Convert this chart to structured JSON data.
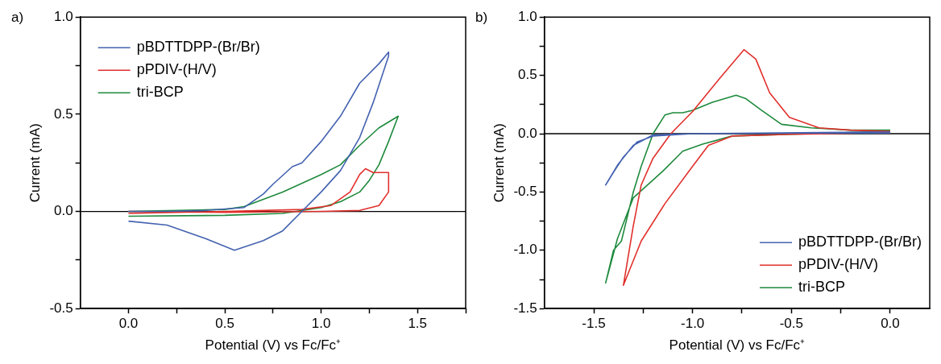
{
  "chart_data": [
    {
      "type": "line",
      "annotations": [
        "a)"
      ],
      "xlabel": "Potential (V) vs Fc/Fc⁺",
      "ylabel": "Current (mA)",
      "xlim": [
        -0.25,
        1.75
      ],
      "ylim": [
        -0.5,
        1.0
      ],
      "xticks": [
        {
          "value": 0,
          "label": "0.0"
        },
        {
          "value": 0.25,
          "label": null
        },
        0.5,
        {
          "value": 0.75,
          "label": null
        },
        {
          "value": 1,
          "label": "1.0"
        },
        {
          "value": 1.25,
          "label": null
        },
        1.5,
        {
          "value": 1.75,
          "label": null
        }
      ],
      "yticks": [
        -0.5,
        {
          "value": -0.25,
          "label": null
        },
        {
          "value": 0,
          "label": "0.0"
        },
        {
          "value": 0.25,
          "label": null
        },
        0.5,
        {
          "value": 0.75,
          "label": null
        },
        {
          "value": 1,
          "label": "1.0"
        }
      ],
      "grid": false,
      "legend": "top left",
      "marker": "none",
      "line_style": "solid",
      "ref_lines": [
        {
          "axis": "y",
          "value": 0,
          "label": null,
          "color": "#000000"
        }
      ],
      "series": [
        {
          "name": "pBDTTDPP-(Br/Br)",
          "color": "#4462b0",
          "x": [
            0,
            0.2,
            0.4,
            0.55,
            0.7,
            0.8,
            0.9,
            1.0,
            1.1,
            1.2,
            1.27,
            1.35,
            1.35,
            1.3,
            1.2,
            1.1,
            1.0,
            0.9,
            0.85,
            0.75,
            0.7,
            0.6,
            0.4,
            0.2,
            0
          ],
          "values": [
            -0.05,
            -0.07,
            -0.14,
            -0.2,
            -0.15,
            -0.1,
            0.0,
            0.1,
            0.21,
            0.38,
            0.56,
            0.8,
            0.82,
            0.76,
            0.66,
            0.49,
            0.36,
            0.25,
            0.23,
            0.14,
            0.09,
            0.02,
            0.005,
            0.0,
            0.0
          ]
        },
        {
          "name": "pPDIV-(H/V)",
          "color": "#e0302c",
          "x": [
            0,
            0.5,
            0.9,
            1.05,
            1.15,
            1.2,
            1.23,
            1.27,
            1.35,
            1.35,
            1.3,
            1.2,
            1.0,
            0.5,
            0
          ],
          "values": [
            -0.01,
            0.0,
            0.01,
            0.03,
            0.1,
            0.19,
            0.22,
            0.2,
            0.2,
            0.1,
            0.03,
            0.005,
            0.0,
            -0.005,
            0.0
          ]
        },
        {
          "name": "tri-BCP",
          "color": "#1e8a3c",
          "x": [
            0,
            0.5,
            0.6,
            0.8,
            1.0,
            1.1,
            1.2,
            1.3,
            1.4,
            1.35,
            1.3,
            1.25,
            1.2,
            1.1,
            1.0,
            0.8,
            0.5,
            0
          ],
          "values": [
            0.0,
            0.01,
            0.025,
            0.1,
            0.19,
            0.24,
            0.34,
            0.43,
            0.49,
            0.36,
            0.24,
            0.16,
            0.1,
            0.05,
            0.02,
            -0.01,
            -0.02,
            -0.025
          ]
        }
      ]
    },
    {
      "type": "line",
      "annotations": [
        "b)"
      ],
      "xlabel": "Potential (V) vs Fc/Fc⁺",
      "ylabel": "Current (mA)",
      "xlim": [
        -1.75,
        0.2
      ],
      "ylim": [
        -1.5,
        1.0
      ],
      "xticks": [
        -1.5,
        {
          "value": -1.25,
          "label": null
        },
        {
          "value": -1,
          "label": "-1.0"
        },
        {
          "value": -0.75,
          "label": null
        },
        -0.5,
        {
          "value": -0.25,
          "label": null
        },
        {
          "value": 0,
          "label": "0.0"
        }
      ],
      "yticks": [
        -1.5,
        {
          "value": -1.25,
          "label": null
        },
        {
          "value": -1,
          "label": "-1.0"
        },
        {
          "value": -0.75,
          "label": null
        },
        -0.5,
        {
          "value": -0.25,
          "label": null
        },
        {
          "value": 0,
          "label": "0.0"
        },
        {
          "value": 0.25,
          "label": null
        },
        0.5,
        {
          "value": 0.75,
          "label": null
        },
        {
          "value": 1,
          "label": "1.0"
        }
      ],
      "grid": false,
      "legend": "bottom right",
      "marker": "none",
      "line_style": "solid",
      "ref_lines": [
        {
          "axis": "y",
          "value": 0,
          "label": null,
          "color": "#000000"
        }
      ],
      "series": [
        {
          "name": "pBDTTDPP-(Br/Br)",
          "color": "#4462b0",
          "x": [
            0,
            -0.5,
            -1.0,
            -1.2,
            -1.3,
            -1.38,
            -1.44,
            -1.4,
            -1.35,
            -1.28,
            -1.2,
            -1.0,
            0
          ],
          "values": [
            0.005,
            0.005,
            0.0,
            -0.01,
            -0.1,
            -0.27,
            -0.44,
            -0.33,
            -0.2,
            -0.07,
            -0.02,
            0.0,
            0.015
          ]
        },
        {
          "name": "pPDIV-(H/V)",
          "color": "#e0302c",
          "x": [
            0,
            -0.5,
            -0.8,
            -0.92,
            -1.0,
            -1.14,
            -1.26,
            -1.35,
            -1.3,
            -1.26,
            -1.2,
            -1.11,
            -1.0,
            -0.86,
            -0.74,
            -0.68,
            -0.61,
            -0.51,
            -0.36,
            -0.2,
            0
          ],
          "values": [
            0.01,
            -0.005,
            -0.02,
            -0.1,
            -0.28,
            -0.6,
            -0.92,
            -1.3,
            -0.79,
            -0.44,
            -0.21,
            0.0,
            0.19,
            0.48,
            0.72,
            0.64,
            0.35,
            0.14,
            0.05,
            0.03,
            0.02
          ]
        },
        {
          "name": "tri-BCP",
          "color": "#1e8a3c",
          "x": [
            0,
            -0.5,
            -0.8,
            -0.95,
            -1.05,
            -1.15,
            -1.3,
            -1.38,
            -1.44,
            -1.4,
            -1.36,
            -1.3,
            -1.26,
            -1.2,
            -1.14,
            -1.1,
            -1.05,
            -1.0,
            -0.9,
            -0.78,
            -0.73,
            -0.65,
            -0.55,
            -0.4,
            -0.2,
            0
          ],
          "values": [
            0.02,
            -0.005,
            -0.02,
            -0.09,
            -0.15,
            -0.32,
            -0.55,
            -0.9,
            -1.28,
            -1.0,
            -0.92,
            -0.5,
            -0.28,
            0.0,
            0.16,
            0.18,
            0.18,
            0.2,
            0.27,
            0.33,
            0.3,
            0.2,
            0.08,
            0.05,
            0.03,
            0.03
          ]
        }
      ]
    }
  ]
}
